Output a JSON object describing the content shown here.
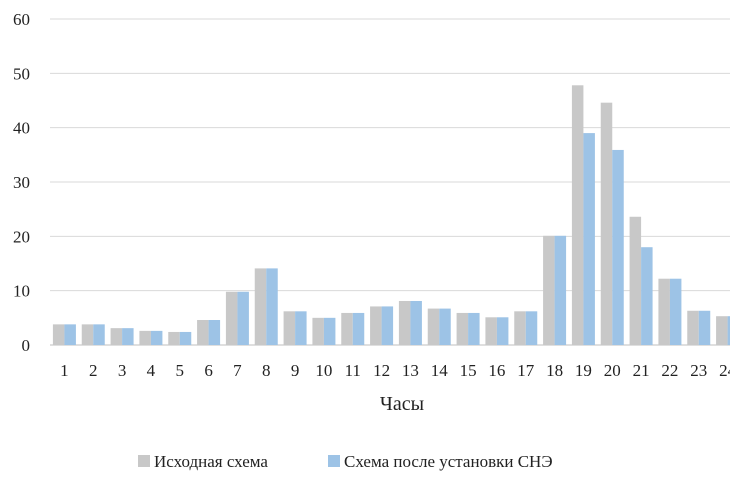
{
  "chart_data": {
    "type": "bar",
    "title": "",
    "xlabel": "Часы",
    "ylabel": "",
    "ylim": [
      0,
      60
    ],
    "yticks": [
      0,
      10,
      20,
      30,
      40,
      50,
      60
    ],
    "categories": [
      "1",
      "2",
      "3",
      "4",
      "5",
      "6",
      "7",
      "8",
      "9",
      "10",
      "11",
      "12",
      "13",
      "14",
      "15",
      "16",
      "17",
      "18",
      "19",
      "20",
      "21",
      "22",
      "23",
      "24"
    ],
    "series": [
      {
        "name": "Исходная схема",
        "color": "#c8c8c8",
        "values": [
          3.8,
          3.8,
          3.1,
          2.6,
          2.4,
          4.6,
          9.8,
          14.1,
          6.2,
          5.0,
          5.9,
          7.1,
          8.1,
          6.7,
          5.9,
          5.1,
          6.2,
          20.1,
          47.8,
          44.6,
          23.6,
          12.2,
          6.3,
          5.3
        ]
      },
      {
        "name": "Схема после установки СНЭ",
        "color": "#9dc3e6",
        "values": [
          3.8,
          3.8,
          3.1,
          2.6,
          2.4,
          4.6,
          9.8,
          14.1,
          6.2,
          5.0,
          5.9,
          7.1,
          8.1,
          6.7,
          5.9,
          5.1,
          6.2,
          20.1,
          39.0,
          35.9,
          18.0,
          12.2,
          6.3,
          5.3
        ]
      }
    ],
    "grid": true,
    "legend": "bottom"
  }
}
